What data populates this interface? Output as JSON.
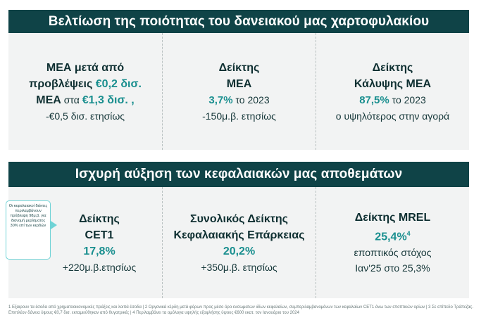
{
  "section1": {
    "title": "Βελτίωση της ποιότητας του δανειακού μας χαρτοφυλακίου",
    "col1": {
      "line1": "ΜΕΑ μετά από",
      "line2_a": "προβλέψεις ",
      "line2_b": "€0,2 δισ.",
      "line3_a": "ΜΕΑ",
      "line3_b": " στα ",
      "line3_c": "€1,3 δισ. ,",
      "line4": "-€0,5 δισ. ετησίως"
    },
    "col2": {
      "line1": "Δείκτης",
      "line2": "ΜΕΑ",
      "val_a": "3,7%",
      "val_b": " το 2023",
      "line4": "-150μ.β. ετησίως"
    },
    "col3": {
      "line1": "Δείκτης",
      "line2": "Κάλυψης ΜΕΑ",
      "val_a": "87,5%",
      "val_b": " το 2023",
      "line4": "ο υψηλότερος στην αγορά"
    }
  },
  "section2": {
    "title": "Ισχυρή αύξηση των κεφαλαιακών μας αποθεμάτων",
    "col1": {
      "line1": "Δείκτης",
      "line2": "CET1",
      "val": "17,8%",
      "line4": "+220μ.β.ετησίως"
    },
    "col2": {
      "line1": "Συνολικός Δείκτης",
      "line2": "Κεφαλαιακής Επάρκειας",
      "val": "20,2%",
      "line4": "+350μ.β. ετησίως"
    },
    "col3": {
      "line1": "Δείκτης MREL",
      "val": "25,4%",
      "val_sup": "4",
      "line3": "εποπτικός στόχος",
      "line4": "Ιαν'25 στο 25,3%"
    },
    "callout": "Οι κεφαλαιακοί δείκτες περιλαμβάνουν πρόβλεψη 98μ.β. για διανομή μερίσματος 30% επί των κερδών"
  },
  "footnote": "1 Εξαιρουν τα έσοδα από χρηματοοικονομικές πράξεις και λοιπά έσοδα | 2 Οργανικά κέρδη μετά φόρων προς μέσο όρο ενσωματων ιδίων κεφαλαίων, συμπεριλαμβανομένων των κεφαλαίων CET1 άνω των εποπτικών ορίων | 3 Σε επίπεδο Τράπεζας. Επιπλέον δάνεια ύψους €0,7 δισ. εκταμιεύθηκαν από θυγατρικές | 4 Περιλαμβάνει τα ομόλογα υψηλής εξοφλήσης ύψους €600 εκατ. τον Ιανουάριο του 2024"
}
